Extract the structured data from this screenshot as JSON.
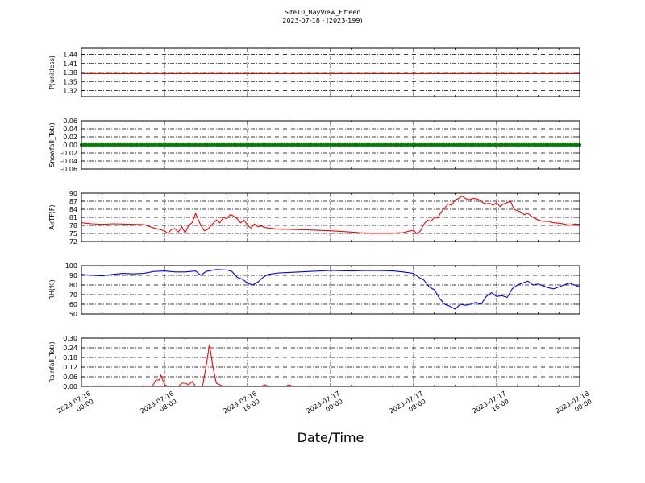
{
  "figure": {
    "title": "Site10_BayView_Fifteen",
    "subtitle": "2023-07-18 - (2023-199)",
    "xlabel": "Date/Time"
  },
  "chart_data": [
    {
      "type": "line",
      "title": "",
      "ylabel": "P(unitless)",
      "ylim": [
        1.3,
        1.46
      ],
      "yticks": [
        "1.32",
        "1.35",
        "1.38",
        "1.41",
        "1.44"
      ],
      "xlim": [
        "2023-07-16 00:00",
        "2023-07-18 00:00"
      ],
      "grid": true,
      "color": "#ff0000",
      "series": [
        {
          "x": [
            "2023-07-16 00:00",
            "2023-07-18 00:00"
          ],
          "y": [
            1.376,
            1.376
          ]
        }
      ]
    },
    {
      "type": "line",
      "title": "",
      "ylabel": "Snowfall_Tot()",
      "ylim": [
        -0.06,
        0.06
      ],
      "yticks": [
        "0.06",
        "0.04",
        "0.02",
        "0.00",
        "-0.02",
        "-0.04",
        "-0.06"
      ],
      "xlim": [
        "2023-07-16 00:00",
        "2023-07-18 00:00"
      ],
      "grid": true,
      "color": "#008000",
      "marker": "dot",
      "series": [
        {
          "x": [
            "2023-07-16 00:00",
            "2023-07-18 00:00"
          ],
          "y": [
            0.0,
            0.0
          ]
        }
      ]
    },
    {
      "type": "line",
      "title": "",
      "ylabel": "AirTF(F)",
      "ylim": [
        72,
        90
      ],
      "yticks": [
        "90",
        "87",
        "84",
        "81",
        "78",
        "75",
        "72"
      ],
      "xlim": [
        "2023-07-16 00:00",
        "2023-07-18 00:00"
      ],
      "grid": true,
      "color": "#ff0000",
      "series": [
        {
          "x": [
            "2023-07-16 00:00",
            "2023-07-16 01:00",
            "2023-07-16 02:00",
            "2023-07-16 03:00",
            "2023-07-16 04:00",
            "2023-07-16 05:00",
            "2023-07-16 06:00",
            "2023-07-16 07:00",
            "2023-07-16 07:30",
            "2023-07-16 08:00",
            "2023-07-16 08:20",
            "2023-07-16 08:40",
            "2023-07-16 09:00",
            "2023-07-16 09:20",
            "2023-07-16 09:40",
            "2023-07-16 10:00",
            "2023-07-16 10:20",
            "2023-07-16 10:40",
            "2023-07-16 11:00",
            "2023-07-16 11:30",
            "2023-07-16 11:50",
            "2023-07-16 12:10",
            "2023-07-16 12:30",
            "2023-07-16 13:00",
            "2023-07-16 13:20",
            "2023-07-16 13:40",
            "2023-07-16 14:00",
            "2023-07-16 14:20",
            "2023-07-16 14:40",
            "2023-07-16 15:00",
            "2023-07-16 15:20",
            "2023-07-16 15:40",
            "2023-07-16 16:00",
            "2023-07-16 16:20",
            "2023-07-16 16:40",
            "2023-07-16 17:00",
            "2023-07-16 17:20",
            "2023-07-16 17:40",
            "2023-07-16 18:00",
            "2023-07-16 19:00",
            "2023-07-16 20:00",
            "2023-07-16 21:00",
            "2023-07-16 22:00",
            "2023-07-17 00:00",
            "2023-07-17 02:00",
            "2023-07-17 03:00",
            "2023-07-17 04:00",
            "2023-07-17 05:00",
            "2023-07-17 06:00",
            "2023-07-17 07:00",
            "2023-07-17 07:30",
            "2023-07-17 08:00",
            "2023-07-17 08:20",
            "2023-07-17 08:40",
            "2023-07-17 09:00",
            "2023-07-17 09:20",
            "2023-07-17 09:40",
            "2023-07-17 10:00",
            "2023-07-17 10:20",
            "2023-07-17 10:40",
            "2023-07-17 11:00",
            "2023-07-17 11:20",
            "2023-07-17 11:40",
            "2023-07-17 12:00",
            "2023-07-17 12:20",
            "2023-07-17 12:40",
            "2023-07-17 13:00",
            "2023-07-17 13:20",
            "2023-07-17 13:40",
            "2023-07-17 14:00",
            "2023-07-17 14:20",
            "2023-07-17 14:40",
            "2023-07-17 15:00",
            "2023-07-17 15:20",
            "2023-07-17 15:40",
            "2023-07-17 16:00",
            "2023-07-17 16:20",
            "2023-07-17 16:40",
            "2023-07-17 17:00",
            "2023-07-17 17:20",
            "2023-07-17 17:40",
            "2023-07-17 18:00",
            "2023-07-17 18:20",
            "2023-07-17 18:40",
            "2023-07-17 19:00",
            "2023-07-17 19:30",
            "2023-07-17 20:00",
            "2023-07-17 20:30",
            "2023-07-17 21:00",
            "2023-07-17 21:30",
            "2023-07-17 22:00",
            "2023-07-17 22:30",
            "2023-07-17 23:00",
            "2023-07-17 23:30",
            "2023-07-18 00:00"
          ],
          "y": [
            79.0,
            78.6,
            78.4,
            78.6,
            78.5,
            78.4,
            78.3,
            77.0,
            76.5,
            76.0,
            75.0,
            76.5,
            76.8,
            75.5,
            77.5,
            75.2,
            78.0,
            79.0,
            82.5,
            78.0,
            76.0,
            76.5,
            78.0,
            80.0,
            79.0,
            81.0,
            80.5,
            82.0,
            81.5,
            80.5,
            79.0,
            80.0,
            78.0,
            77.0,
            78.5,
            77.5,
            77.8,
            77.2,
            77.0,
            76.6,
            76.5,
            76.4,
            76.3,
            76.0,
            75.5,
            75.2,
            75.0,
            75.0,
            75.1,
            75.3,
            75.8,
            76.2,
            74.8,
            76.0,
            78.5,
            80.0,
            79.5,
            81.0,
            80.8,
            83.0,
            84.5,
            86.0,
            85.5,
            87.5,
            88.0,
            89.0,
            88.0,
            87.5,
            88.0,
            88.0,
            87.5,
            86.5,
            86.0,
            86.2,
            85.5,
            86.5,
            85.0,
            86.0,
            86.5,
            87.0,
            84.0,
            83.5,
            83.0,
            82.0,
            82.5,
            81.0,
            80.0,
            79.5,
            79.5,
            79.0,
            78.8,
            78.5,
            78.0,
            78.5,
            78.4
          ]
        }
      ]
    },
    {
      "type": "line",
      "title": "",
      "ylabel": "RH(%)",
      "ylim": [
        50,
        100
      ],
      "yticks": [
        "100",
        "90",
        "80",
        "70",
        "60",
        "50"
      ],
      "xlim": [
        "2023-07-16 00:00",
        "2023-07-18 00:00"
      ],
      "grid": true,
      "color": "#0000ff",
      "series": [
        {
          "x": [
            "2023-07-16 00:00",
            "2023-07-16 01:00",
            "2023-07-16 02:00",
            "2023-07-16 03:00",
            "2023-07-16 04:00",
            "2023-07-16 05:00",
            "2023-07-16 06:00",
            "2023-07-16 07:00",
            "2023-07-16 08:00",
            "2023-07-16 09:00",
            "2023-07-16 10:00",
            "2023-07-16 11:00",
            "2023-07-16 11:30",
            "2023-07-16 12:00",
            "2023-07-16 13:00",
            "2023-07-16 14:00",
            "2023-07-16 14:30",
            "2023-07-16 15:00",
            "2023-07-16 15:30",
            "2023-07-16 16:00",
            "2023-07-16 16:30",
            "2023-07-16 17:00",
            "2023-07-16 17:30",
            "2023-07-16 18:00",
            "2023-07-16 19:00",
            "2023-07-16 20:00",
            "2023-07-16 21:00",
            "2023-07-16 22:00",
            "2023-07-17 00:00",
            "2023-07-17 02:00",
            "2023-07-17 03:00",
            "2023-07-17 04:00",
            "2023-07-17 05:00",
            "2023-07-17 06:00",
            "2023-07-17 07:00",
            "2023-07-17 08:00",
            "2023-07-17 08:30",
            "2023-07-17 09:00",
            "2023-07-17 09:30",
            "2023-07-17 10:00",
            "2023-07-17 10:30",
            "2023-07-17 11:00",
            "2023-07-17 11:30",
            "2023-07-17 12:00",
            "2023-07-17 12:30",
            "2023-07-17 13:00",
            "2023-07-17 13:30",
            "2023-07-17 14:00",
            "2023-07-17 14:30",
            "2023-07-17 15:00",
            "2023-07-17 15:30",
            "2023-07-17 16:00",
            "2023-07-17 16:30",
            "2023-07-17 17:00",
            "2023-07-17 17:30",
            "2023-07-17 18:00",
            "2023-07-17 18:30",
            "2023-07-17 19:00",
            "2023-07-17 19:30",
            "2023-07-17 20:00",
            "2023-07-17 20:30",
            "2023-07-17 21:00",
            "2023-07-17 21:30",
            "2023-07-17 22:00",
            "2023-07-17 22:30",
            "2023-07-17 23:00",
            "2023-07-17 23:30",
            "2023-07-18 00:00"
          ],
          "y": [
            91.0,
            90.0,
            89.5,
            91.0,
            92.0,
            91.5,
            92.0,
            94.0,
            94.5,
            93.5,
            93.5,
            94.5,
            90.0,
            94.0,
            96.0,
            95.5,
            94.0,
            88.0,
            86.0,
            82.0,
            80.0,
            83.0,
            88.0,
            91.0,
            92.5,
            93.0,
            93.5,
            94.0,
            95.0,
            94.5,
            94.8,
            95.0,
            94.8,
            94.5,
            93.5,
            92.0,
            88.0,
            85.0,
            78.0,
            75.0,
            66.0,
            60.0,
            58.0,
            55.0,
            60.0,
            59.0,
            60.0,
            62.0,
            60.0,
            68.0,
            72.0,
            68.0,
            69.0,
            67.0,
            76.0,
            80.0,
            82.0,
            84.0,
            80.0,
            81.0,
            79.0,
            77.0,
            76.0,
            78.0,
            80.0,
            82.0,
            80.0,
            78.0
          ]
        }
      ]
    },
    {
      "type": "line",
      "title": "",
      "ylabel": "Rainfall_Tot()",
      "ylim": [
        0,
        0.3
      ],
      "yticks": [
        "0.30",
        "0.24",
        "0.18",
        "0.12",
        "0.06",
        "0.00"
      ],
      "xlim": [
        "2023-07-16 00:00",
        "2023-07-18 00:00"
      ],
      "xticks": [
        [
          "2023-07-16",
          "00:00"
        ],
        [
          "2023-07-16",
          "08:00"
        ],
        [
          "2023-07-16",
          "16:00"
        ],
        [
          "2023-07-17",
          "00:00"
        ],
        [
          "2023-07-17",
          "08:00"
        ],
        [
          "2023-07-17",
          "16:00"
        ],
        [
          "2023-07-18",
          "00:00"
        ]
      ],
      "grid": true,
      "color": "#ff0000",
      "series": [
        {
          "x": [
            "2023-07-16 00:00",
            "2023-07-16 06:50",
            "2023-07-16 07:10",
            "2023-07-16 07:30",
            "2023-07-16 07:40",
            "2023-07-16 08:00",
            "2023-07-16 08:20",
            "2023-07-16 09:20",
            "2023-07-16 09:40",
            "2023-07-16 10:00",
            "2023-07-16 10:20",
            "2023-07-16 10:40",
            "2023-07-16 11:00",
            "2023-07-16 11:40",
            "2023-07-16 12:00",
            "2023-07-16 12:20",
            "2023-07-16 12:40",
            "2023-07-16 13:00",
            "2023-07-16 13:20",
            "2023-07-16 13:40",
            "2023-07-16 14:20",
            "2023-07-16 17:20",
            "2023-07-16 17:40",
            "2023-07-16 18:00",
            "2023-07-16 19:40",
            "2023-07-16 20:00",
            "2023-07-16 20:20",
            "2023-07-18 00:00"
          ],
          "y": [
            0.0,
            0.0,
            0.04,
            0.04,
            0.07,
            0.01,
            0.0,
            0.0,
            0.02,
            0.02,
            0.01,
            0.03,
            0.0,
            0.0,
            0.12,
            0.26,
            0.12,
            0.02,
            0.01,
            0.0,
            0.0,
            0.0,
            0.01,
            0.0,
            0.0,
            0.01,
            0.0,
            0.0
          ]
        }
      ]
    }
  ]
}
